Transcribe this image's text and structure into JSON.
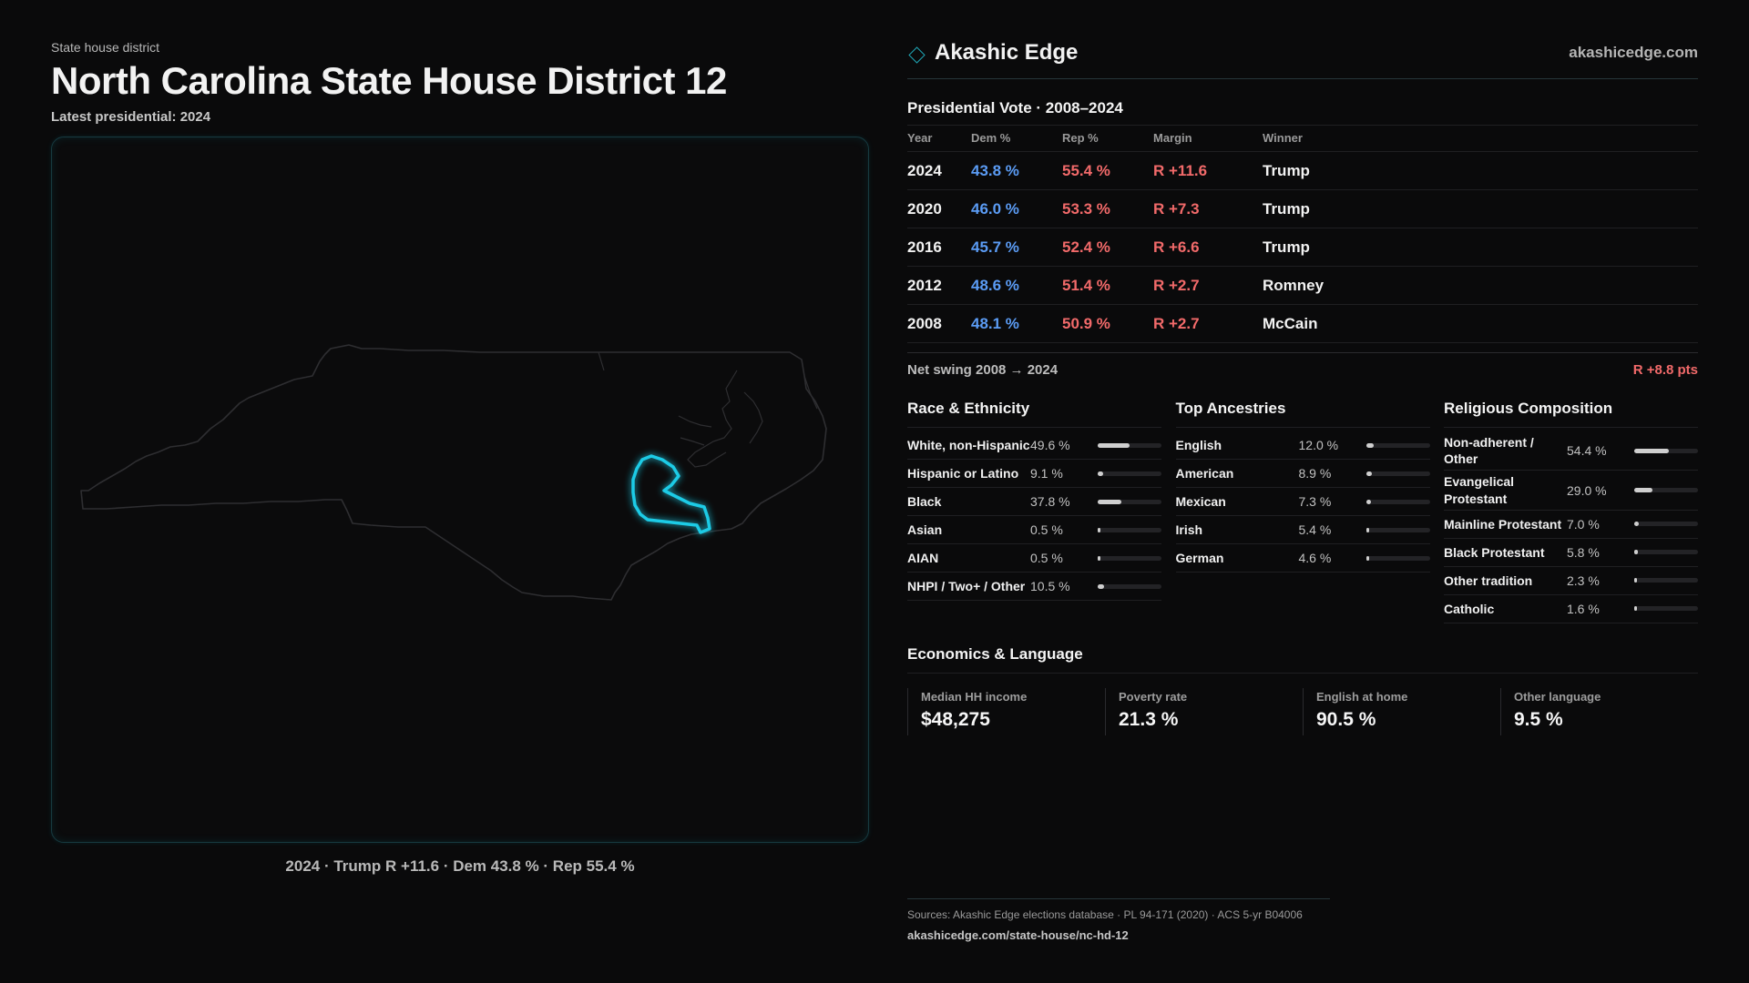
{
  "header": {
    "kicker": "State house district",
    "title": "North Carolina State House District 12",
    "subtitle": "Latest presidential: 2024"
  },
  "map": {
    "caption": "2024 · Trump R +11.6 · Dem 43.8 % · Rep 55.4 %",
    "outline_color": "#2e2e31",
    "highlight_color": "#1ecbe6"
  },
  "brand": {
    "name": "Akashic Edge",
    "site": "akashicedge.com",
    "icon": "diamond-icon",
    "accent": "#1fa5b4"
  },
  "presidential": {
    "title": "Presidential Vote · 2008–2024",
    "headers": [
      "Year",
      "Dem %",
      "Rep %",
      "Margin",
      "Winner"
    ],
    "rows": [
      {
        "year": "2024",
        "dem": "43.8 %",
        "rep": "55.4 %",
        "margin": "R +11.6",
        "winner": "Trump"
      },
      {
        "year": "2020",
        "dem": "46.0 %",
        "rep": "53.3 %",
        "margin": "R +7.3",
        "winner": "Trump"
      },
      {
        "year": "2016",
        "dem": "45.7 %",
        "rep": "52.4 %",
        "margin": "R +6.6",
        "winner": "Trump"
      },
      {
        "year": "2012",
        "dem": "48.6 %",
        "rep": "51.4 %",
        "margin": "R +2.7",
        "winner": "Romney"
      },
      {
        "year": "2008",
        "dem": "48.1 %",
        "rep": "50.9 %",
        "margin": "R +2.7",
        "winner": "McCain"
      }
    ],
    "swing_label": "Net swing 2008 → 2024",
    "swing_value": "R +8.8 pts",
    "dem_color": "#5b9cf5",
    "rep_color": "#f26a6a"
  },
  "race": {
    "title": "Race & Ethnicity",
    "items": [
      {
        "label": "White, non-Hispanic",
        "pct": "49.6 %",
        "value": 49.6
      },
      {
        "label": "Hispanic or Latino",
        "pct": "9.1 %",
        "value": 9.1
      },
      {
        "label": "Black",
        "pct": "37.8 %",
        "value": 37.8
      },
      {
        "label": "Asian",
        "pct": "0.5 %",
        "value": 0.5
      },
      {
        "label": "AIAN",
        "pct": "0.5 %",
        "value": 0.5
      },
      {
        "label": "NHPI / Two+ / Other",
        "pct": "10.5 %",
        "value": 10.5
      }
    ]
  },
  "ancestry": {
    "title": "Top Ancestries",
    "items": [
      {
        "label": "English",
        "pct": "12.0 %",
        "value": 12.0
      },
      {
        "label": "American",
        "pct": "8.9 %",
        "value": 8.9
      },
      {
        "label": "Mexican",
        "pct": "7.3 %",
        "value": 7.3
      },
      {
        "label": "Irish",
        "pct": "5.4 %",
        "value": 5.4
      },
      {
        "label": "German",
        "pct": "4.6 %",
        "value": 4.6
      }
    ]
  },
  "religion": {
    "title": "Religious Composition",
    "items": [
      {
        "label": "Non-adherent / Other",
        "pct": "54.4 %",
        "value": 54.4
      },
      {
        "label": "Evangelical Protestant",
        "pct": "29.0 %",
        "value": 29.0
      },
      {
        "label": "Mainline Protestant",
        "pct": "7.0 %",
        "value": 7.0
      },
      {
        "label": "Black Protestant",
        "pct": "5.8 %",
        "value": 5.8
      },
      {
        "label": "Other tradition",
        "pct": "2.3 %",
        "value": 2.3
      },
      {
        "label": "Catholic",
        "pct": "1.6 %",
        "value": 1.6
      }
    ]
  },
  "economics": {
    "title": "Economics & Language",
    "items": [
      {
        "label": "Median HH income",
        "value": "$48,275"
      },
      {
        "label": "Poverty rate",
        "value": "21.3 %"
      },
      {
        "label": "English at home",
        "value": "90.5 %"
      },
      {
        "label": "Other language",
        "value": "9.5 %"
      }
    ]
  },
  "footer": {
    "sources": "Sources: Akashic Edge elections database · PL 94-171 (2020) · ACS 5-yr B04006",
    "url": "akashicedge.com/state-house/nc-hd-12"
  }
}
